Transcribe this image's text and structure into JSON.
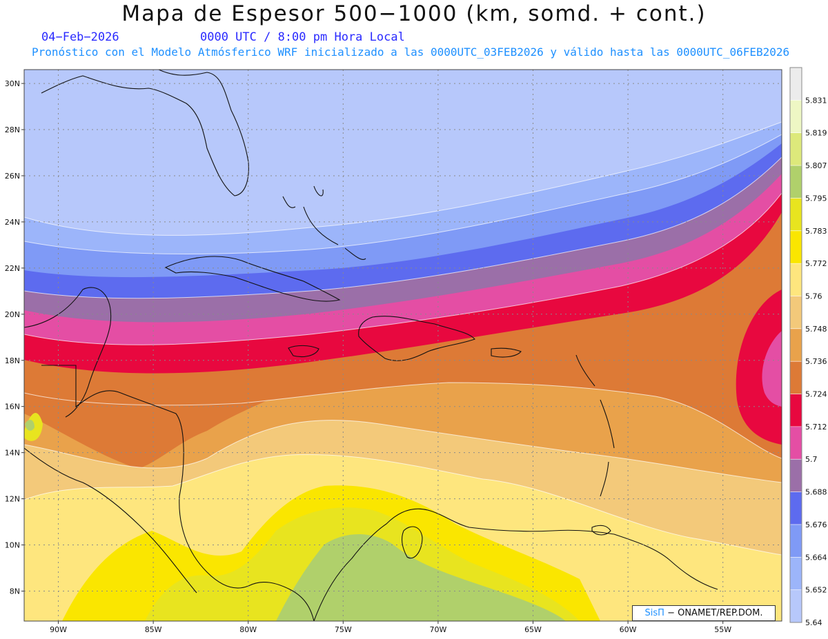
{
  "header": {
    "title": "Mapa de Espesor 500−1000 (km, somd. + cont.)",
    "date": "04−Feb−2026",
    "time": "0000 UTC / 8:00 pm Hora Local",
    "description": "Pronóstico con el Modelo Atmósferico WRF inicializado a las 0000UTC_03FEB2026 y válido hasta las  0000UTC_06FEB2026"
  },
  "axes": {
    "lat_labels": [
      "30N",
      "28N",
      "26N",
      "24N",
      "22N",
      "20N",
      "18N",
      "16N",
      "14N",
      "12N",
      "10N",
      "8N"
    ],
    "lat_values": [
      30,
      28,
      26,
      24,
      22,
      20,
      18,
      16,
      14,
      12,
      10,
      8
    ],
    "lon_labels": [
      "90W",
      "85W",
      "80W",
      "75W",
      "70W",
      "65W",
      "60W",
      "55W"
    ],
    "lon_values": [
      -90,
      -85,
      -80,
      -75,
      -70,
      -65,
      -60,
      -55
    ],
    "lat_range": [
      6.7,
      30.6
    ],
    "lon_range": [
      -91.8,
      -51.9
    ],
    "grid": "dotted"
  },
  "colorbar": {
    "labels": [
      "5.64",
      "5.652",
      "5.664",
      "5.676",
      "5.688",
      "5.7",
      "5.712",
      "5.724",
      "5.736",
      "5.748",
      "5.76",
      "5.772",
      "5.783",
      "5.795",
      "5.807",
      "5.819",
      "5.831"
    ],
    "colors": [
      "#b7c8fb",
      "#9cb5fa",
      "#7f9af6",
      "#5d6bef",
      "#9b6fa8",
      "#e44ea4",
      "#e8083f",
      "#dd7a36",
      "#e9a24b",
      "#f3c97a",
      "#fee67e",
      "#fae600",
      "#e8e41f",
      "#b0d06b",
      "#dde97b",
      "#eef7c4",
      "#ececec"
    ]
  },
  "map": {
    "palette": {
      "l0": "#b7c8fb",
      "l1": "#9cb5fa",
      "l2": "#7f9af6",
      "l3": "#5d6bef",
      "l4": "#9b6fa8",
      "l5": "#e44ea4",
      "l6": "#e8083f",
      "l7": "#dd7a36",
      "l8": "#e9a24b",
      "l9": "#f3c97a",
      "l10": "#fee67e",
      "l11": "#fae600",
      "l12": "#e8e41f",
      "l13": "#b0d06b"
    }
  },
  "credit": {
    "brand": "SisΠ",
    "org": " − ONAMET/REP.DOM."
  }
}
